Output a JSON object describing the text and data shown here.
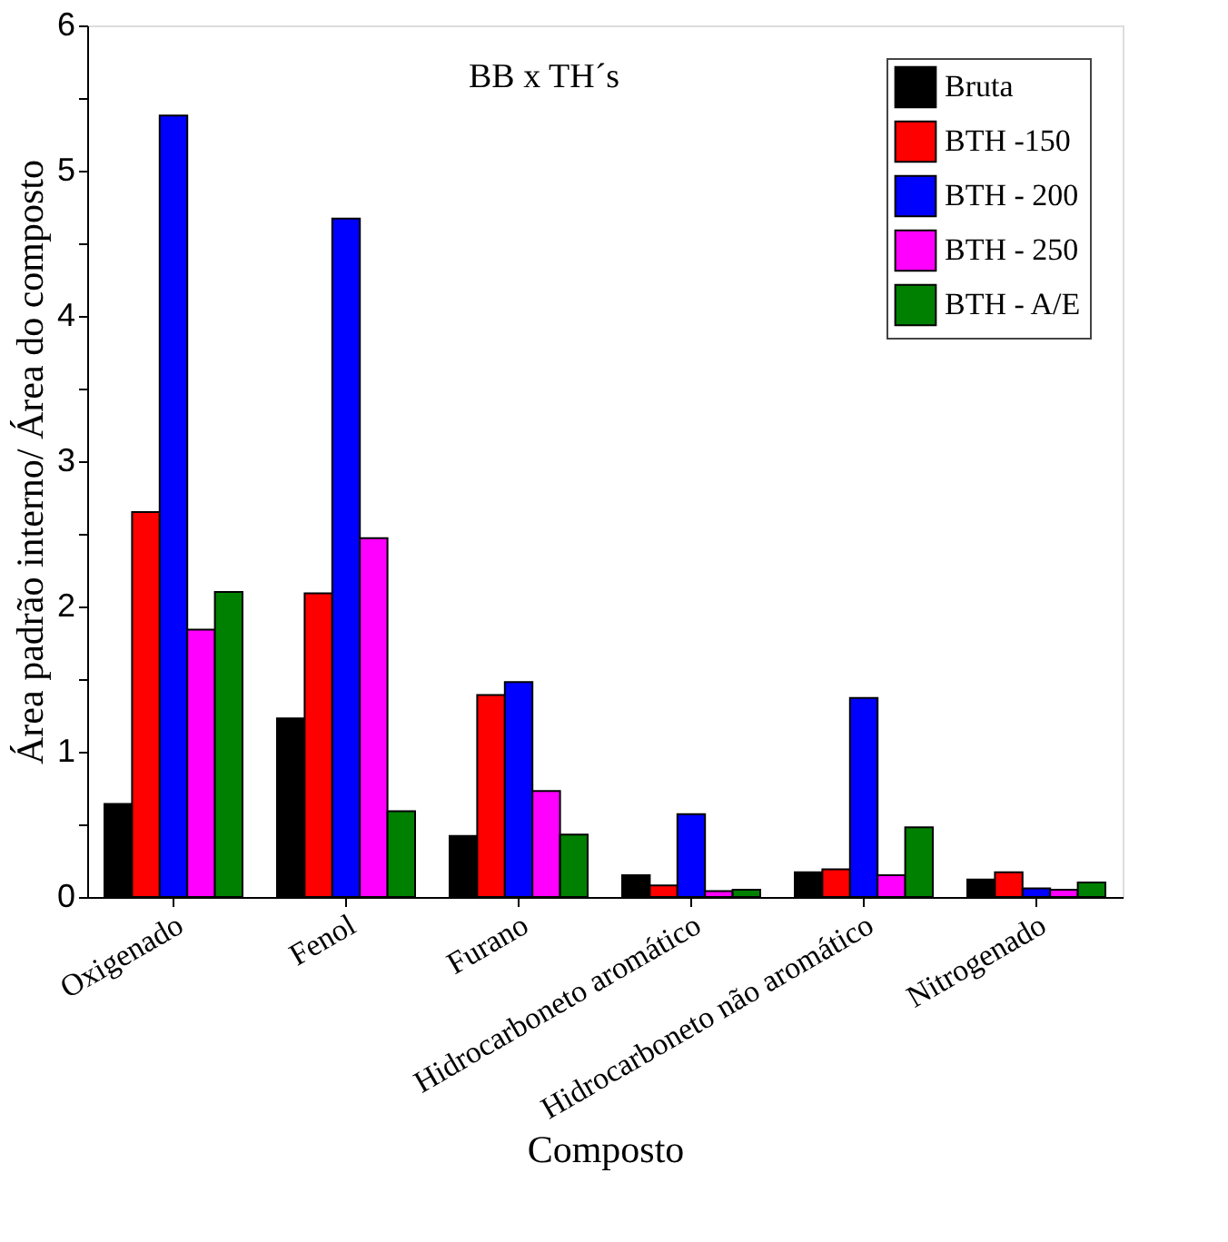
{
  "chart_data": {
    "type": "bar",
    "xlabel": "Composto",
    "ylabel": "Área padrão interno/ Área do composto",
    "annotations": [
      "BB x TH´s"
    ],
    "categories": [
      "Oxigenado",
      "Fenol",
      "Furano",
      "Hidrocarboneto aromático",
      "Hidrocarboneto não aromático",
      "Nitrogenado"
    ],
    "series": [
      {
        "name": "Bruta",
        "color": "#000000",
        "values": [
          0.64,
          1.23,
          0.42,
          0.15,
          0.17,
          0.12
        ]
      },
      {
        "name": "BTH -150",
        "color": "#ff0000",
        "values": [
          2.65,
          2.09,
          1.39,
          0.08,
          0.19,
          0.17
        ]
      },
      {
        "name": "BTH - 200",
        "color": "#0000ff",
        "values": [
          5.38,
          4.67,
          1.48,
          0.57,
          1.37,
          0.06
        ]
      },
      {
        "name": "BTH - 250",
        "color": "#ff00ff",
        "values": [
          1.84,
          2.47,
          0.73,
          0.04,
          0.15,
          0.05
        ]
      },
      {
        "name": "BTH - A/E",
        "color": "#008000",
        "values": [
          2.1,
          0.59,
          0.43,
          0.05,
          0.48,
          0.1
        ]
      }
    ],
    "ylim": [
      0,
      6
    ],
    "yticks": [
      0,
      {
        "value": 0.5,
        "label": null
      },
      1,
      {
        "value": 1.5,
        "label": null
      },
      2,
      {
        "value": 2.5,
        "label": null
      },
      3,
      {
        "value": 3.5,
        "label": null
      },
      4,
      {
        "value": 4.5,
        "label": null
      },
      5,
      {
        "value": 5.5,
        "label": null
      },
      6
    ],
    "grid": false,
    "legend": "top right"
  }
}
